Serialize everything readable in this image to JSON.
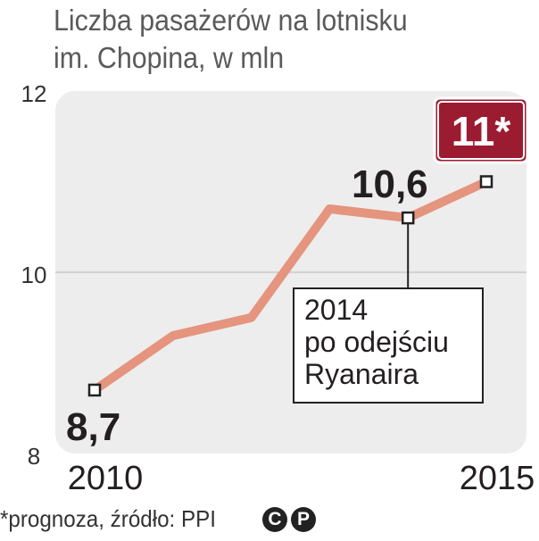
{
  "title_lines": [
    "Liczba pasażerów na lotnisku",
    "im. Chopina, w mln"
  ],
  "footer_text": "*prognoza, źródło: PPI",
  "license_icons": [
    "creative-commons-icon",
    "public-domain-icon"
  ],
  "colors": {
    "line": "#e5947e",
    "plot_bg": "#ededed",
    "badge": "#9b1b31",
    "text": "#231f20"
  },
  "chart_data": {
    "type": "line",
    "title": "Liczba pasażerów na lotnisku im. Chopina, w mln",
    "x_tick_labels": [
      "2010",
      "2015"
    ],
    "y_ticks": [
      8,
      10,
      12
    ],
    "y_tick_labels": [
      "8",
      "10",
      "12"
    ],
    "ylim": [
      8,
      12
    ],
    "grid": true,
    "series": [
      {
        "x": [
          2010,
          2011,
          2012,
          2013,
          2014,
          2015
        ],
        "values": [
          8.7,
          9.3,
          9.5,
          10.7,
          10.6,
          11.0
        ]
      }
    ],
    "marked_points": [
      2010,
      2014,
      2015
    ],
    "data_labels": [
      {
        "x": 2010,
        "text": "8,7"
      },
      {
        "x": 2014,
        "text": "10,6"
      },
      {
        "x": 2015,
        "text": "11*"
      }
    ],
    "annotation": {
      "x": 2014,
      "lines": [
        "2014",
        "po odejściu",
        "Ryanaira"
      ]
    }
  }
}
